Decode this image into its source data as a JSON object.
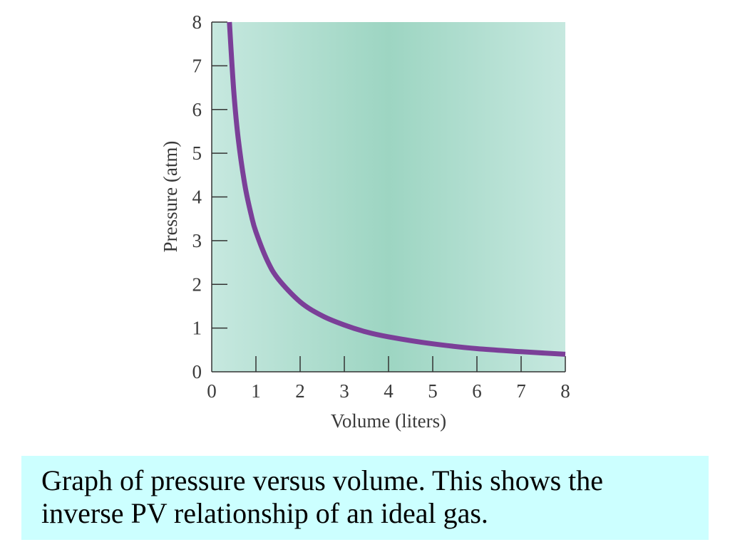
{
  "chart_data": {
    "type": "line",
    "title": "",
    "xlabel": "Volume (liters)",
    "ylabel": "Pressure (atm)",
    "xlim": [
      0,
      8
    ],
    "ylim": [
      0,
      8
    ],
    "x_ticks": [
      "0",
      "1",
      "2",
      "3",
      "4",
      "5",
      "6",
      "7",
      "8"
    ],
    "y_ticks": [
      "0",
      "1",
      "2",
      "3",
      "4",
      "5",
      "6",
      "7",
      "8"
    ],
    "grid": false,
    "legend": "none",
    "background": "teal gradient, darkest near x=4",
    "series": [
      {
        "color": "#7b3f98",
        "x": [
          0.4,
          0.5,
          0.6,
          0.75,
          0.9,
          1.0,
          1.25,
          1.5,
          2.0,
          2.5,
          3.0,
          3.5,
          4.0,
          5.0,
          6.0,
          7.0,
          8.0
        ],
        "y": [
          8.0,
          6.4,
          5.33,
          4.27,
          3.56,
          3.2,
          2.56,
          2.13,
          1.6,
          1.28,
          1.07,
          0.91,
          0.8,
          0.64,
          0.53,
          0.46,
          0.4
        ]
      }
    ]
  },
  "caption": {
    "text": "Graph of pressure versus volume.  This shows the\ninverse PV relationship of an ideal gas."
  }
}
